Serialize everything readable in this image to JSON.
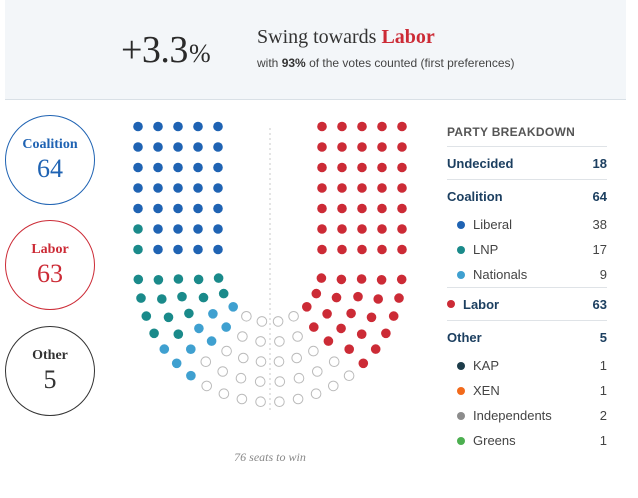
{
  "header": {
    "swing_value": "+3.3",
    "swing_unit": "%",
    "swing_prefix": "Swing towards",
    "swing_party": "Labor",
    "sub_prefix": "with",
    "sub_pct": "93%",
    "sub_suffix": "of the votes counted (first preferences)"
  },
  "totals": {
    "coalition": {
      "name": "Coalition",
      "seats": "64",
      "color": "#1f63b3"
    },
    "labor": {
      "name": "Labor",
      "seats": "63",
      "color": "#cc2b36"
    },
    "other": {
      "name": "Other",
      "seats": "5",
      "color": "#333333"
    }
  },
  "seats_to_win": "76 seats to win",
  "seat_groups": {
    "left": [
      {
        "party": "Liberal",
        "count": 38,
        "color": "#1f63b3"
      },
      {
        "party": "LNP",
        "count": 17,
        "color": "#1a8a8a"
      },
      {
        "party": "Nationals",
        "count": 9,
        "color": "#3fa0d0"
      }
    ],
    "right": [
      {
        "party": "Labor",
        "count": 63,
        "color": "#cc2b36"
      }
    ],
    "undecided": {
      "count": 18,
      "color": "#ffffff"
    }
  },
  "breakdown": {
    "title": "PARTY BREAKDOWN",
    "undecided": {
      "label": "Undecided",
      "value": "18"
    },
    "coalition": {
      "label": "Coalition",
      "value": "64"
    },
    "liberal": {
      "label": "Liberal",
      "value": "38",
      "color": "#1f63b3"
    },
    "lnp": {
      "label": "LNP",
      "value": "17",
      "color": "#1a8a8a"
    },
    "nationals": {
      "label": "Nationals",
      "value": "9",
      "color": "#3fa0d0"
    },
    "labor": {
      "label": "Labor",
      "value": "63",
      "color": "#cc2b36"
    },
    "other": {
      "label": "Other",
      "value": "5"
    },
    "kap": {
      "label": "KAP",
      "value": "1",
      "color": "#1d3c4a"
    },
    "xen": {
      "label": "XEN",
      "value": "1",
      "color": "#f26a1b"
    },
    "independents": {
      "label": "Independents",
      "value": "2",
      "color": "#8c8c8c"
    },
    "greens": {
      "label": "Greens",
      "value": "1",
      "color": "#4caf50"
    }
  }
}
